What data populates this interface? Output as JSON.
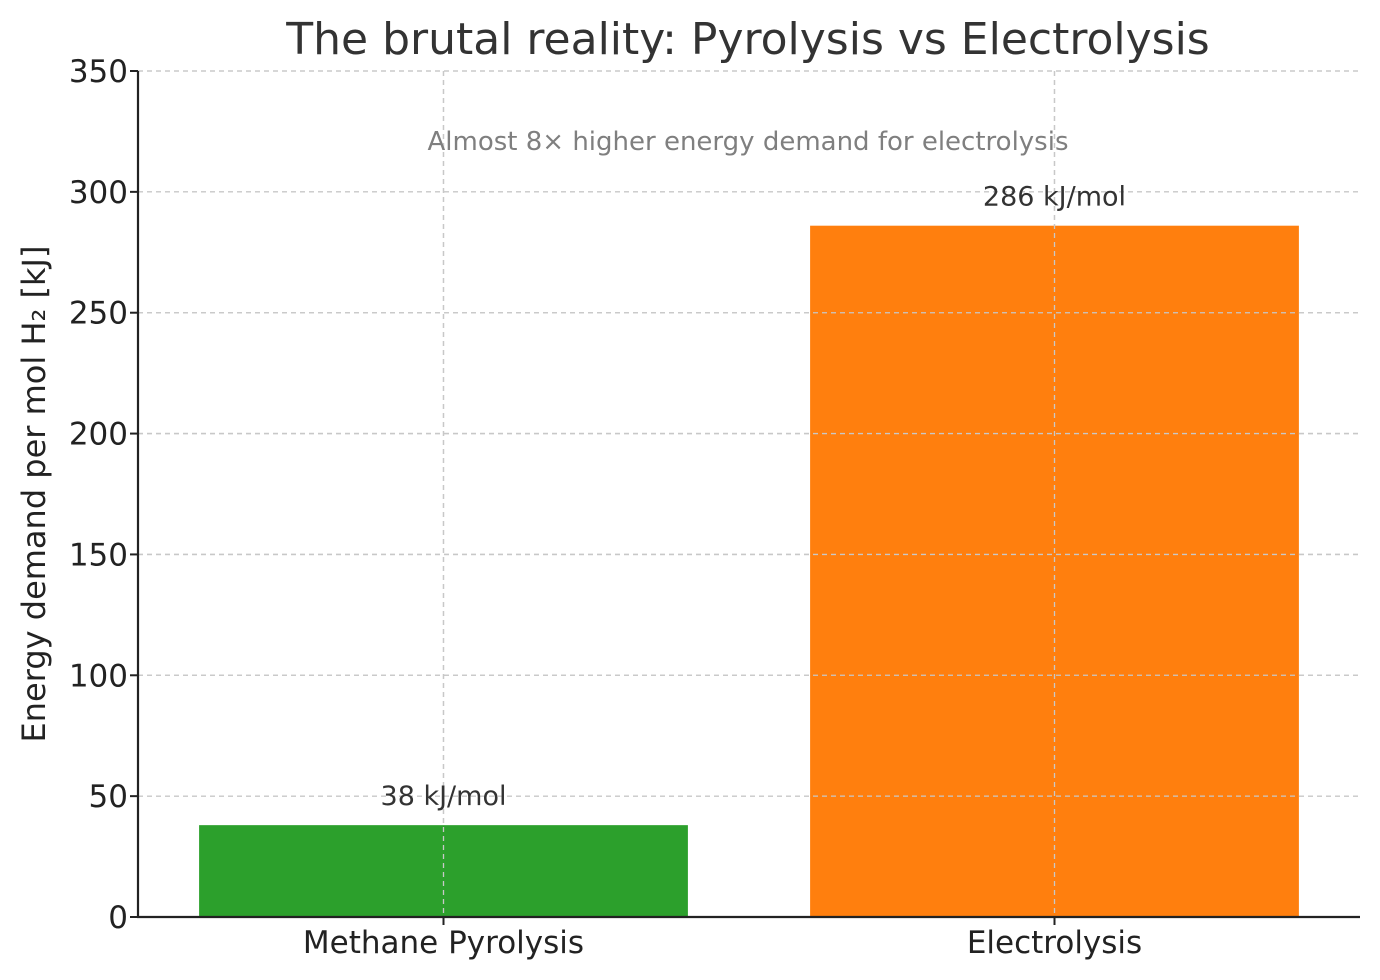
{
  "chart_data": {
    "type": "bar",
    "title": "The brutal reality: Pyrolysis vs Electrolysis",
    "annotation": "Almost 8× higher energy demand for electrolysis",
    "xlabel": "",
    "ylabel": "Energy demand per mol H₂ [kJ]",
    "categories": [
      "Methane Pyrolysis",
      "Electrolysis"
    ],
    "values": [
      38,
      286
    ],
    "data_labels": [
      "38 kJ/mol",
      "286 kJ/mol"
    ],
    "colors": [
      "#2ca02c",
      "#ff7f0e"
    ],
    "ylim": [
      0,
      350
    ],
    "yticks": [
      0,
      50,
      100,
      150,
      200,
      250,
      300,
      350
    ],
    "ytick_labels": [
      "0",
      "50",
      "100",
      "150",
      "200",
      "250",
      "300",
      "350"
    ],
    "grid": true
  }
}
